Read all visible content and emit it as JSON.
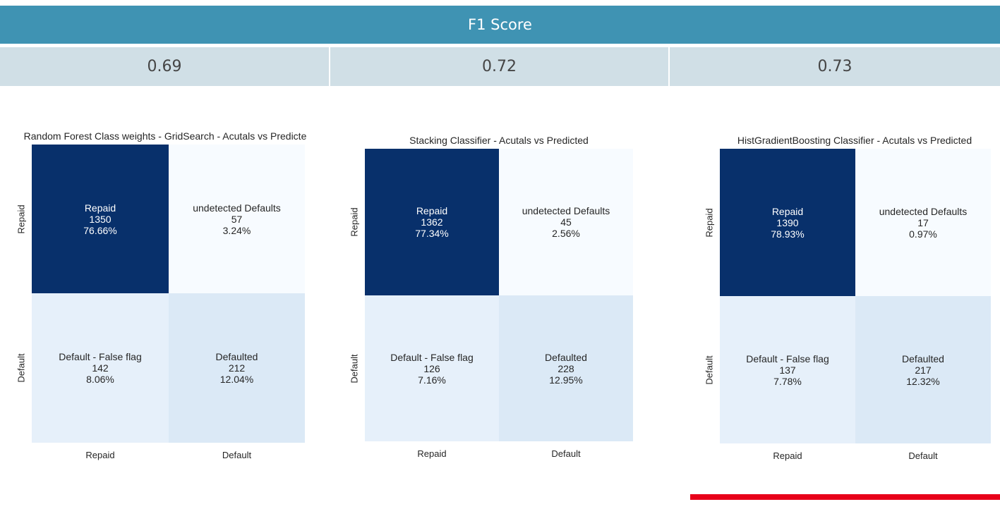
{
  "header": {
    "title": "F1 Score"
  },
  "scores": [
    "0.69",
    "0.72",
    "0.73"
  ],
  "colors": {
    "header_bg": "#3f93b3",
    "score_bg": "#d0dfe6",
    "tp_cell": "#08306b",
    "fn_cell": "#f7fbff",
    "fp_cell": "#e6f0fa",
    "tn_cell": "#dbe9f6",
    "highlight": "#e8001a"
  },
  "chart_data": [
    {
      "type": "heatmap",
      "title": "Random Forest Class weights - GridSearch - Acutals vs Predicte",
      "row_labels": [
        "Repaid",
        "Default"
      ],
      "col_labels": [
        "Repaid",
        "Default"
      ],
      "cells": [
        [
          {
            "name": "Repaid",
            "value": "1350",
            "pct": "76.66%"
          },
          {
            "name": "undetected Defaults",
            "value": "57",
            "pct": "3.24%"
          }
        ],
        [
          {
            "name": "Default - False flag",
            "value": "142",
            "pct": "8.06%"
          },
          {
            "name": "Defaulted",
            "value": "212",
            "pct": "12.04%"
          }
        ]
      ]
    },
    {
      "type": "heatmap",
      "title": "Stacking Classifier - Acutals vs Predicted",
      "row_labels": [
        "Repaid",
        "Default"
      ],
      "col_labels": [
        "Repaid",
        "Default"
      ],
      "cells": [
        [
          {
            "name": "Repaid",
            "value": "1362",
            "pct": "77.34%"
          },
          {
            "name": "undetected Defaults",
            "value": "45",
            "pct": "2.56%"
          }
        ],
        [
          {
            "name": "Default - False flag",
            "value": "126",
            "pct": "7.16%"
          },
          {
            "name": "Defaulted",
            "value": "228",
            "pct": "12.95%"
          }
        ]
      ]
    },
    {
      "type": "heatmap",
      "title": "HistGradientBoosting Classifier - Acutals vs Predicted",
      "row_labels": [
        "Repaid",
        "Default"
      ],
      "col_labels": [
        "Repaid",
        "Default"
      ],
      "cells": [
        [
          {
            "name": "Repaid",
            "value": "1390",
            "pct": "78.93%"
          },
          {
            "name": "undetected Defaults",
            "value": "17",
            "pct": "0.97%"
          }
        ],
        [
          {
            "name": "Default - False flag",
            "value": "137",
            "pct": "7.78%"
          },
          {
            "name": "Defaulted",
            "value": "217",
            "pct": "12.32%"
          }
        ]
      ]
    }
  ]
}
